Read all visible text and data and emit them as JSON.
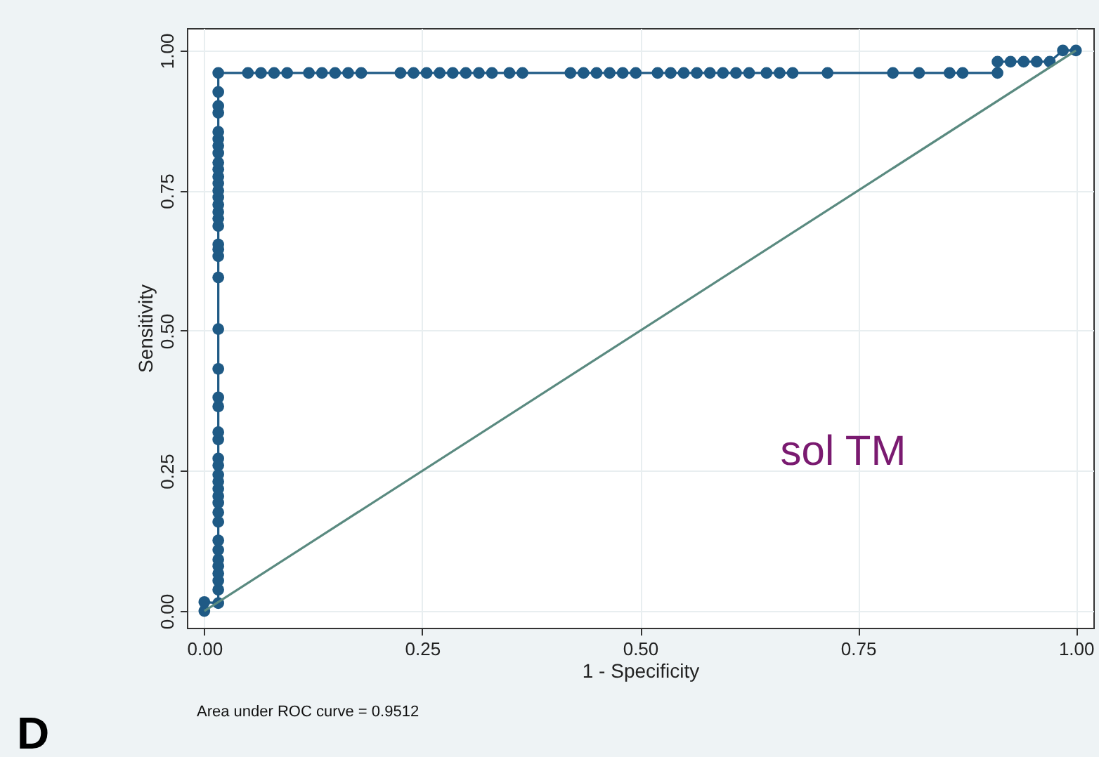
{
  "chart_data": {
    "type": "line",
    "xlabel": "1 - Specificity",
    "ylabel": "Sensitivity",
    "xlim": [
      -0.02,
      1.02
    ],
    "ylim": [
      -0.03,
      1.04
    ],
    "xticks": [
      {
        "value": 0,
        "label": "0.00"
      },
      {
        "value": 0.25,
        "label": "0.25"
      },
      {
        "value": 0.5,
        "label": "0.50"
      },
      {
        "value": 0.75,
        "label": "0.75"
      },
      {
        "value": 1,
        "label": "1.00"
      }
    ],
    "yticks": [
      {
        "value": 0,
        "label": "0.00"
      },
      {
        "value": 0.25,
        "label": "0.25"
      },
      {
        "value": 0.5,
        "label": "0.50"
      },
      {
        "value": 0.75,
        "label": "0.75"
      },
      {
        "value": 1,
        "label": "1.00"
      }
    ],
    "grid": true,
    "series": [
      {
        "marker": "circle",
        "color": "#1f5a85",
        "x": [
          0,
          0,
          0.016,
          0.016,
          0.016,
          0.016,
          0.016,
          0.016,
          0.016,
          0.016,
          0.016,
          0.016,
          0.016,
          0.016,
          0.016,
          0.016,
          0.016,
          0.016,
          0.016,
          0.016,
          0.016,
          0.016,
          0.016,
          0.016,
          0.016,
          0.016,
          0.016,
          0.016,
          0.016,
          0.016,
          0.016,
          0.016,
          0.016,
          0.016,
          0.016,
          0.016,
          0.016,
          0.016,
          0.016,
          0.016,
          0.016,
          0.016,
          0.016,
          0.016,
          0.016,
          0.016,
          0.016,
          0.05,
          0.065,
          0.08,
          0.095,
          0.12,
          0.135,
          0.15,
          0.165,
          0.18,
          0.225,
          0.24,
          0.255,
          0.27,
          0.285,
          0.3,
          0.315,
          0.33,
          0.35,
          0.365,
          0.42,
          0.435,
          0.45,
          0.465,
          0.48,
          0.495,
          0.52,
          0.535,
          0.55,
          0.565,
          0.58,
          0.595,
          0.61,
          0.625,
          0.645,
          0.66,
          0.675,
          0.715,
          0.79,
          0.82,
          0.855,
          0.87,
          0.91,
          0.91,
          0.925,
          0.94,
          0.955,
          0.97,
          0.985,
          1.0
        ],
        "values": [
          0,
          0.016,
          0.014,
          0.038,
          0.054,
          0.067,
          0.08,
          0.092,
          0.109,
          0.126,
          0.159,
          0.176,
          0.193,
          0.205,
          0.218,
          0.231,
          0.243,
          0.26,
          0.272,
          0.306,
          0.319,
          0.365,
          0.381,
          0.432,
          0.503,
          0.595,
          0.633,
          0.645,
          0.654,
          0.687,
          0.7,
          0.712,
          0.725,
          0.738,
          0.75,
          0.763,
          0.775,
          0.788,
          0.8,
          0.817,
          0.83,
          0.842,
          0.855,
          0.889,
          0.901,
          0.926,
          0.96,
          0.96,
          0.96,
          0.96,
          0.96,
          0.96,
          0.96,
          0.96,
          0.96,
          0.96,
          0.96,
          0.96,
          0.96,
          0.96,
          0.96,
          0.96,
          0.96,
          0.96,
          0.96,
          0.96,
          0.96,
          0.96,
          0.96,
          0.96,
          0.96,
          0.96,
          0.96,
          0.96,
          0.96,
          0.96,
          0.96,
          0.96,
          0.96,
          0.96,
          0.96,
          0.96,
          0.96,
          0.96,
          0.96,
          0.96,
          0.96,
          0.96,
          0.96,
          0.98,
          0.98,
          0.98,
          0.98,
          0.98,
          1.0,
          1.0
        ]
      },
      {
        "marker": "none",
        "color": "#5a8a80",
        "x": [
          0,
          1
        ],
        "values": [
          0,
          1
        ]
      }
    ],
    "annotations": [
      "sol TM",
      "Area under ROC curve = 0.9512",
      "D"
    ]
  }
}
